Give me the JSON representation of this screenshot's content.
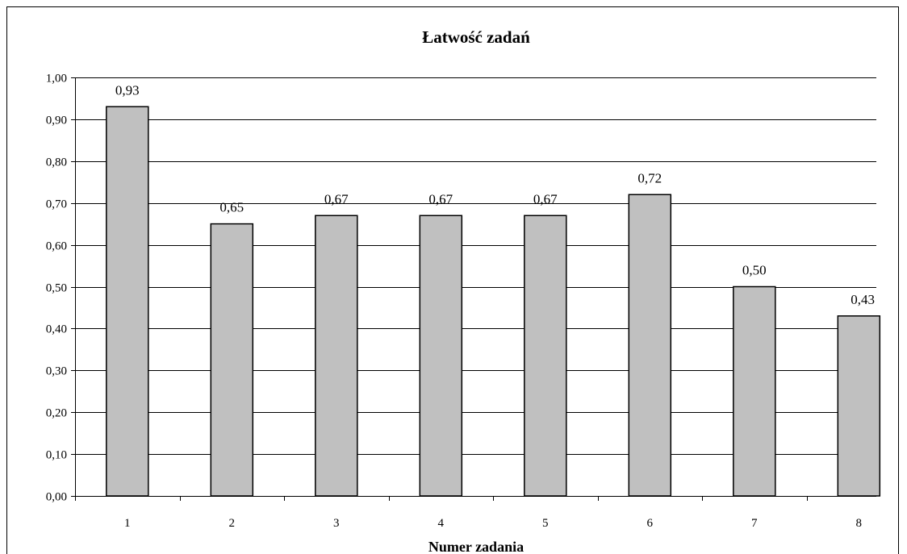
{
  "chart_data": {
    "type": "bar",
    "title": "Łatwość zadań",
    "xlabel": "Numer zadania",
    "ylabel": "",
    "categories": [
      "1",
      "2",
      "3",
      "4",
      "5",
      "6",
      "7",
      "8"
    ],
    "values": [
      0.93,
      0.65,
      0.67,
      0.67,
      0.67,
      0.72,
      0.5,
      0.43
    ],
    "value_labels": [
      "0,93",
      "0,65",
      "0,67",
      "0,67",
      "0,67",
      "0,72",
      "0,50",
      "0,43"
    ],
    "ylim": [
      0,
      1
    ],
    "yticks": [
      0,
      0.1,
      0.2,
      0.3,
      0.4,
      0.5,
      0.6,
      0.7,
      0.8,
      0.9,
      1.0
    ],
    "ytick_labels": [
      "0,00",
      "0,10",
      "0,20",
      "0,30",
      "0,40",
      "0,50",
      "0,60",
      "0,70",
      "0,80",
      "0,90",
      "1,00"
    ],
    "grid": true,
    "legend": "none",
    "colors": {
      "bar_fill": "#c0c0c0",
      "bar_stroke": "#000000",
      "grid": "#000000",
      "background": "#ffffff"
    }
  }
}
